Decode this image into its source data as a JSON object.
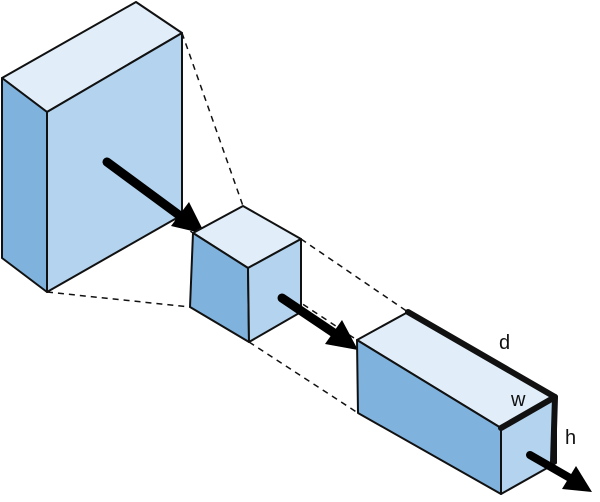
{
  "colors": {
    "face_top": "#e1eef9",
    "face_front": "#b3d3ee",
    "face_side": "#7fb3de",
    "outline": "#111111",
    "arrow": "#000000"
  },
  "labels": {
    "depth": "d",
    "width": "w",
    "height": "h"
  }
}
